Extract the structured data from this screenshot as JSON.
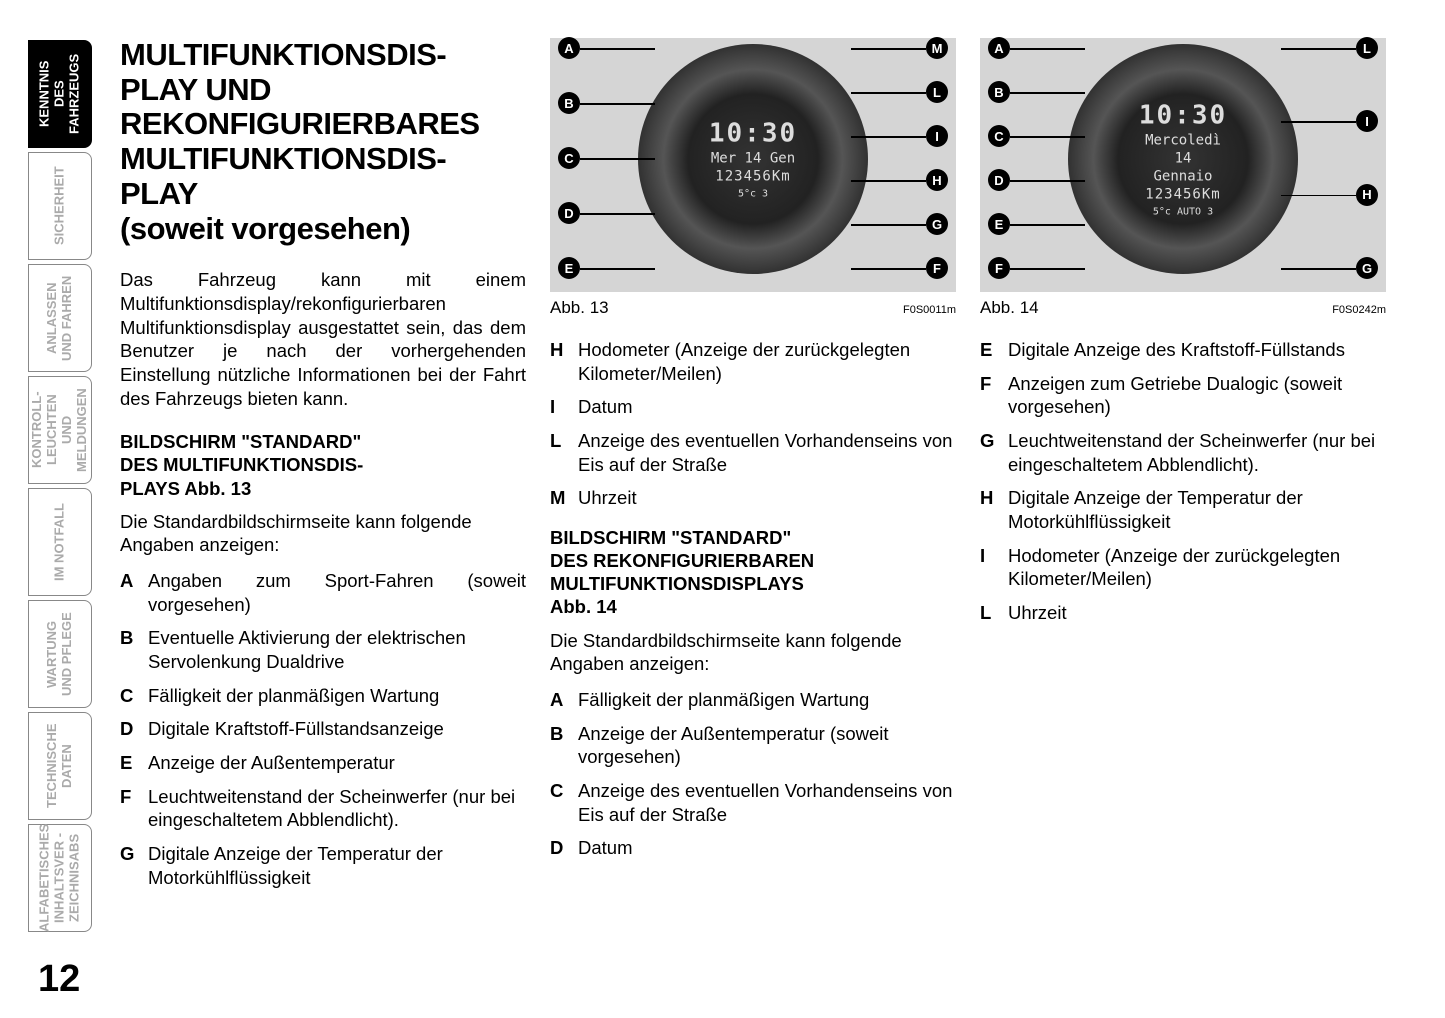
{
  "page_number": "12",
  "tabs": [
    {
      "label": "KENNTNIS DES\nFAHRZEUGS",
      "active": true
    },
    {
      "label": "SICHERHEIT",
      "active": false
    },
    {
      "label": "ANLASSEN\nUND FAHREN",
      "active": false
    },
    {
      "label": "KONTROLL-\nLEUCHTEN UND\nMELDUNGEN",
      "active": false
    },
    {
      "label": "IM NOTFALL",
      "active": false
    },
    {
      "label": "WARTUNG\nUND PFLEGE",
      "active": false
    },
    {
      "label": "TECHNISCHE\nDATEN",
      "active": false
    },
    {
      "label": "ALFABETISCHES\nINHALTSVER -\nZEICHNISABS",
      "active": false
    }
  ],
  "title": "MULTIFUNKTIONSDIS-\nPLAY UND\nREKONFIGURIERBARES\nMULTIFUNKTIONSDIS-\nPLAY\n(soweit vorgesehen)",
  "intro": "Das Fahrzeug kann mit einem Multifunktionsdisplay/rekonfigurierbaren Multifunktionsdisplay ausgestattet sein, das dem Benutzer je nach der vorhergehenden Einstellung nützliche Informationen bei der Fahrt des Fahrzeugs bieten kann.",
  "sec1_title": "BILDSCHIRM \"STANDARD\"\nDES MULTIFUNKTIONSDIS-\nPLAYS Abb. 13",
  "sec1_sub": "Die Standardbildschirmseite kann folgende Angaben anzeigen:",
  "sec1_items": [
    {
      "l": "A",
      "t": "Angaben zum Sport-Fahren (soweit vorgesehen)",
      "j": true
    },
    {
      "l": "B",
      "t": "Eventuelle Aktivierung der elektrischen Servolenkung Dualdrive"
    },
    {
      "l": "C",
      "t": "Fälligkeit der planmäßigen Wartung"
    },
    {
      "l": "D",
      "t": "Digitale Kraftstoff-Füllstandsanzeige"
    },
    {
      "l": "E",
      "t": "Anzeige der Außentemperatur"
    },
    {
      "l": "F",
      "t": "Leuchtweitenstand der Scheinwerfer (nur bei eingeschaltetem Abblendlicht)."
    },
    {
      "l": "G",
      "t": "Digitale Anzeige der Temperatur der Motorkühlflüssigkeit"
    }
  ],
  "fig13": {
    "caption": "Abb. 13",
    "ref": "F0S0011m",
    "left_callouts": [
      "A",
      "B",
      "C",
      "D",
      "E"
    ],
    "right_callouts": [
      "M",
      "L",
      "I",
      "H",
      "G",
      "F"
    ],
    "display": {
      "time": "10:30",
      "date": "Mer 14 Gen",
      "odo": "123456Km",
      "bot": "5°c 3"
    }
  },
  "sec2_items_top": [
    {
      "l": "H",
      "t": "Hodometer (Anzeige der zurückgelegten Kilometer/Meilen)"
    },
    {
      "l": "I",
      "t": "Datum"
    },
    {
      "l": "L",
      "t": "Anzeige des eventuellen Vorhandenseins von Eis auf der Straße"
    },
    {
      "l": "M",
      "t": "Uhrzeit"
    }
  ],
  "sec2_title": "BILDSCHIRM \"STANDARD\"\nDES REKONFIGURIERBAREN\nMULTIFUNKTIONSDISPLAYS\nAbb. 14",
  "sec2_sub": "Die Standardbildschirmseite kann folgende Angaben anzeigen:",
  "sec2_items": [
    {
      "l": "A",
      "t": "Fälligkeit der planmäßigen Wartung"
    },
    {
      "l": "B",
      "t": "Anzeige der Außentemperatur (soweit vorgesehen)"
    },
    {
      "l": "C",
      "t": "Anzeige des eventuellen Vorhandenseins von Eis auf der Straße"
    },
    {
      "l": "D",
      "t": "Datum"
    }
  ],
  "fig14": {
    "caption": "Abb. 14",
    "ref": "F0S0242m",
    "left_callouts": [
      "A",
      "B",
      "C",
      "D",
      "E",
      "F"
    ],
    "right_callouts": [
      "L",
      "I",
      "H",
      "G"
    ],
    "display": {
      "time": "10:30",
      "date": "Mercoledì",
      "odo": "123456Km",
      "day": "14",
      "month": "Gennaio",
      "bot": "5°c  AUTO 3"
    }
  },
  "sec3_items": [
    {
      "l": "E",
      "t": "Digitale Anzeige des Kraftstoff-Füllstands"
    },
    {
      "l": "F",
      "t": "Anzeigen zum Getriebe Dualogic (soweit vorgesehen)"
    },
    {
      "l": "G",
      "t": "Leuchtweitenstand der Scheinwerfer (nur bei eingeschaltetem Abblendlicht)."
    },
    {
      "l": "H",
      "t": "Digitale Anzeige der Temperatur der Motorkühlflüssigkeit"
    },
    {
      "l": "I",
      "t": "Hodometer (Anzeige der zurückgelegten Kilometer/Meilen)"
    },
    {
      "l": "L",
      "t": "Uhrzeit"
    }
  ]
}
